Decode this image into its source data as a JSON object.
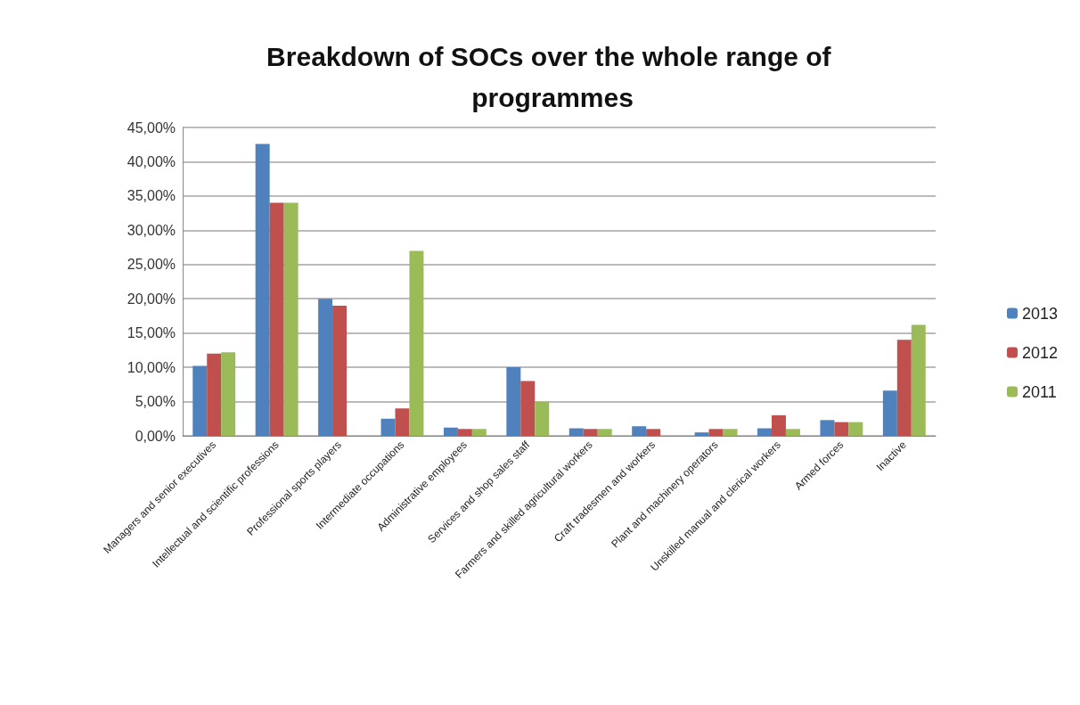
{
  "chart_data": {
    "type": "bar",
    "title": "Breakdown of SOCs over the whole range of programmes",
    "categories": [
      "Managers and senior executives",
      "Intellectual and scientific professions",
      "Professional sports players",
      "Intermediate occupations",
      "Administrative employees",
      "Services and shop sales staff",
      "Farmers and skilled agricultural workers",
      "Craft tradesmen and workers",
      "Plant and machinery operators",
      "Unskilled manual and clerical workers",
      "Armed forces",
      "Inactive"
    ],
    "series": [
      {
        "name": "2013",
        "color": "#4f81bd",
        "values": [
          10.2,
          42.6,
          20,
          2.5,
          1.2,
          10,
          1.1,
          1.4,
          0.5,
          1.1,
          2.3,
          6.6
        ]
      },
      {
        "name": "2012",
        "color": "#c0504d",
        "values": [
          12,
          34,
          19,
          4,
          1,
          8,
          1,
          1,
          1,
          3,
          2,
          14
        ]
      },
      {
        "name": "2011",
        "color": "#9bbb59",
        "values": [
          12.2,
          34,
          null,
          27,
          1,
          5,
          1,
          null,
          1,
          1,
          2,
          16.2
        ]
      }
    ],
    "ylim": [
      0,
      45
    ],
    "yticks": [
      {
        "value": 0,
        "label": "0,00%"
      },
      {
        "value": 5,
        "label": "5,00%"
      },
      {
        "value": 10,
        "label": "10,00%"
      },
      {
        "value": 15,
        "label": "15,00%"
      },
      {
        "value": 20,
        "label": "20,00%"
      },
      {
        "value": 25,
        "label": "25,00%"
      },
      {
        "value": 30,
        "label": "30,00%"
      },
      {
        "value": 35,
        "label": "35,00%"
      },
      {
        "value": 40,
        "label": "40,00%"
      },
      {
        "value": 45,
        "label": "45,00%"
      }
    ],
    "grid": "y",
    "legend": "right"
  }
}
